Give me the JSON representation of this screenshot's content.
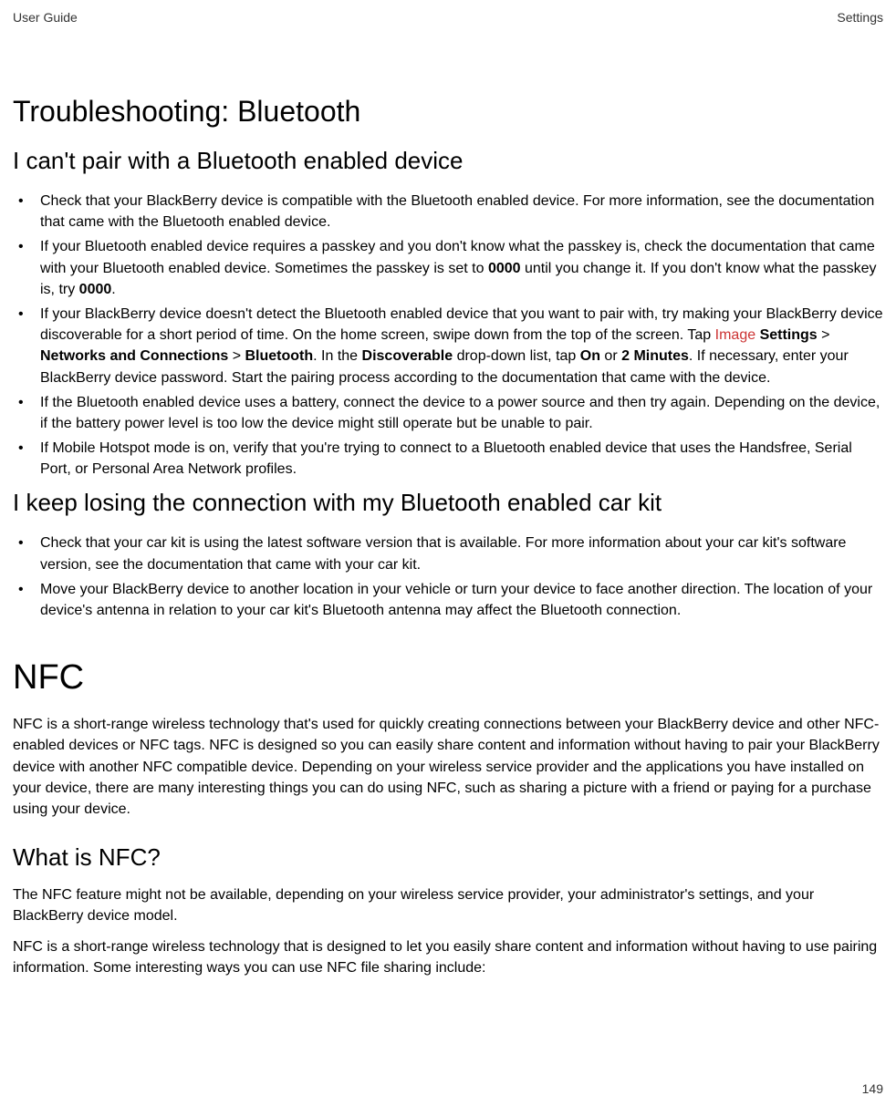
{
  "header": {
    "left": "User Guide",
    "right": "Settings"
  },
  "section1": {
    "heading": "Troubleshooting: Bluetooth",
    "subheading1": "I can't pair with a Bluetooth enabled device",
    "bullets1": {
      "b1": "Check that your BlackBerry device is compatible with the Bluetooth enabled device. For more information, see the documentation that came with the Bluetooth enabled device.",
      "b2_pre": "If your Bluetooth enabled device requires a passkey and you don't know what the passkey is, check the documentation that came with your Bluetooth enabled device. Sometimes the passkey is set to ",
      "b2_bold1": "0000",
      "b2_mid": " until you change it. If you don't know what the passkey is, try ",
      "b2_bold2": "0000",
      "b2_post": ".",
      "b3_pre": "If your BlackBerry device doesn't detect the Bluetooth enabled device that you want to pair with, try making your BlackBerry device discoverable for a short period of time. On the home screen, swipe down from the top of the screen. Tap  ",
      "b3_img": "Image",
      "b3_settings": "Settings",
      "b3_gt1": " > ",
      "b3_net": "Networks and Connections",
      "b3_gt2": " > ",
      "b3_bt": "Bluetooth",
      "b3_mid": ". In the ",
      "b3_disc": "Discoverable",
      "b3_mid2": " drop-down list, tap ",
      "b3_on": "On",
      "b3_or": " or ",
      "b3_2min": "2 Minutes",
      "b3_post": ". If necessary, enter your BlackBerry device password. Start the pairing process according to the documentation that came with the device.",
      "b4": "If the Bluetooth enabled device uses a battery, connect the device to a power source and then try again. Depending on the device, if the battery power level is too low the device might still operate but be unable to pair.",
      "b5": "If Mobile Hotspot mode is on, verify that you're trying to connect to a Bluetooth enabled device that uses the Handsfree, Serial Port, or Personal Area Network profiles."
    },
    "subheading2": "I keep losing the connection with my Bluetooth enabled car kit",
    "bullets2": {
      "b1": "Check that your car kit is using the latest software version that is available. For more information about your car kit's software version, see the documentation that came with your car kit.",
      "b2": "Move your BlackBerry device to another location in your vehicle or turn your device to face another direction. The location of your device's antenna in relation to your car kit's Bluetooth antenna may affect the Bluetooth connection."
    }
  },
  "section2": {
    "heading": "NFC",
    "para1": "NFC is a short-range wireless technology that's used for quickly creating connections between your BlackBerry device and other NFC-enabled devices or NFC tags. NFC is designed so you can easily share content and information without having to pair your BlackBerry device with another NFC compatible device. Depending on your wireless service provider and the applications you have installed on your device, there are many interesting things you can do using NFC, such as sharing a picture with a friend or paying for a purchase using your device.",
    "subheading": "What is NFC?",
    "para2": "The NFC feature might not be available, depending on your wireless service provider, your administrator's settings, and your BlackBerry device model.",
    "para3": "NFC is a short-range wireless technology that is designed to let you easily share content and information without having to use pairing information. Some interesting ways you can use NFC file sharing include:"
  },
  "footer": {
    "page_number": "149"
  }
}
